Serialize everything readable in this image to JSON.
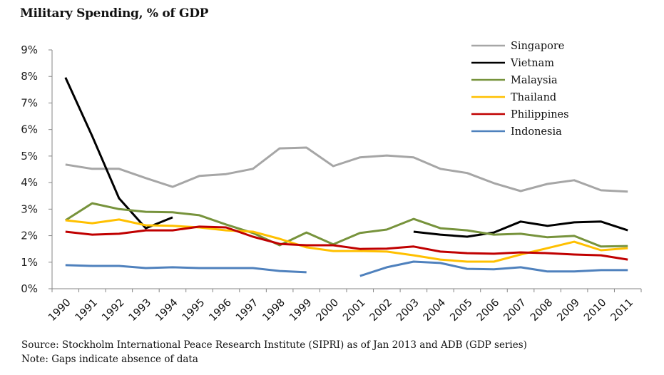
{
  "chart_data": {
    "type": "line",
    "title": "Military Spending, % of GDP",
    "xlabel": "",
    "ylabel": "",
    "ylim": [
      0,
      9
    ],
    "y_ticks": [
      "0%",
      "1%",
      "2%",
      "3%",
      "4%",
      "5%",
      "6%",
      "7%",
      "8%",
      "9%"
    ],
    "grid": false,
    "legend_position": "top-right",
    "categories": [
      "1990",
      "1991",
      "1992",
      "1993",
      "1994",
      "1995",
      "1996",
      "1997",
      "1998",
      "1999",
      "2000",
      "2001",
      "2002",
      "2003",
      "2004",
      "2005",
      "2006",
      "2007",
      "2008",
      "2009",
      "2010",
      "2011"
    ],
    "series": [
      {
        "name": "Singapore",
        "color": "#a6a6a6",
        "values": [
          4.68,
          4.52,
          4.52,
          4.17,
          3.84,
          4.25,
          4.32,
          4.52,
          5.29,
          5.32,
          4.62,
          4.95,
          5.02,
          4.95,
          4.52,
          4.36,
          3.98,
          3.68,
          3.95,
          4.09,
          3.71,
          3.66
        ]
      },
      {
        "name": "Vietnam",
        "color": "#000000",
        "values": [
          7.96,
          5.75,
          3.41,
          2.28,
          2.69,
          null,
          null,
          null,
          null,
          null,
          null,
          null,
          null,
          2.15,
          2.04,
          1.96,
          2.12,
          2.53,
          2.37,
          2.5,
          2.53,
          2.2
        ]
      },
      {
        "name": "Malaysia",
        "color": "#77933c",
        "values": [
          2.58,
          3.22,
          3.0,
          2.9,
          2.88,
          2.77,
          2.42,
          2.1,
          1.64,
          2.12,
          1.67,
          2.1,
          2.23,
          2.63,
          2.28,
          2.2,
          2.04,
          2.07,
          1.94,
          1.99,
          1.59,
          1.61
        ]
      },
      {
        "name": "Thailand",
        "color": "#ffc000",
        "values": [
          2.58,
          2.47,
          2.61,
          2.39,
          2.37,
          2.31,
          2.2,
          2.15,
          1.88,
          1.56,
          1.42,
          1.42,
          1.4,
          1.26,
          1.1,
          1.02,
          1.02,
          1.29,
          1.53,
          1.77,
          1.45,
          1.53
        ]
      },
      {
        "name": "Philippines",
        "color": "#c00000",
        "values": [
          2.15,
          2.04,
          2.07,
          2.2,
          2.2,
          2.34,
          2.31,
          1.96,
          1.69,
          1.64,
          1.64,
          1.5,
          1.51,
          1.59,
          1.4,
          1.34,
          1.32,
          1.37,
          1.34,
          1.29,
          1.26,
          1.1
        ]
      },
      {
        "name": "Indonesia",
        "color": "#4f81bd",
        "values": [
          0.89,
          0.86,
          0.86,
          0.78,
          0.81,
          0.78,
          0.78,
          0.78,
          0.67,
          0.62,
          null,
          0.48,
          0.81,
          1.02,
          0.97,
          0.75,
          0.73,
          0.81,
          0.65,
          0.65,
          0.7,
          0.7
        ]
      }
    ],
    "annotations": [
      "Source: Stockholm International Peace Research Institute (SIPRI) as of Jan 2013 and ADB (GDP series)",
      "Note: Gaps indicate absence of data"
    ]
  },
  "footer": {
    "source": "Source: Stockholm International Peace Research Institute (SIPRI) as of Jan 2013 and ADB (GDP series)",
    "note": "Note: Gaps indicate absence of data"
  }
}
